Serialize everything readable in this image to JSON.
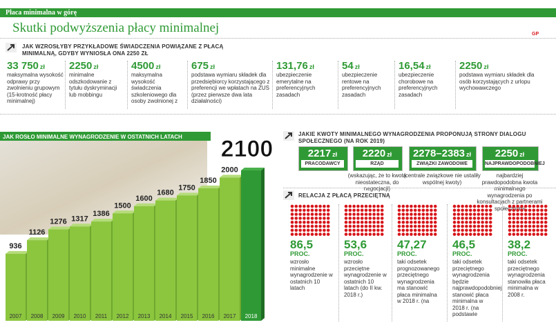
{
  "header": {
    "section": "Płaca minimalna w górę",
    "title": "Skutki podwyższenia płacy minimalnej",
    "logo": "GP"
  },
  "benefits": {
    "heading": "Jak wzrosłyby przykładowe świadczenia powiązane z płacą minimalną, gdyby wyniosła ona 2250 zł",
    "items": [
      {
        "amount": "33 750",
        "unit": "zł",
        "desc": "maksymalna wysokość odprawy przy zwolnieniu grupowym (15-krotność płacy minimalnej)"
      },
      {
        "amount": "2250",
        "unit": "zł",
        "desc": "minimalne odszkodowanie z tytułu dyskryminacji lub mobbingu"
      },
      {
        "amount": "4500",
        "unit": "zł",
        "desc": "maksymalna wysokość świadczenia szkoleniowego dla osoby zwolnionej z"
      },
      {
        "amount": "675",
        "unit": "zł",
        "desc": "podstawa wymiaru składek dla przedsiębiorcy korzystającego z preferencji we wpłatach na ZUS (przez pierwsze dwa lata działalności)"
      },
      {
        "amount": "131,76",
        "unit": "zł",
        "desc": "ubezpieczenie emerytalne na preferencyjnych zasadach"
      },
      {
        "amount": "54",
        "unit": "zł",
        "desc": "ubezpieczenie rentowe na preferencyjnych zasadach"
      },
      {
        "amount": "16,54",
        "unit": "zł",
        "desc": "ubezpieczenie chorobowe na preferencyjnych zasadach"
      },
      {
        "amount": "2250",
        "unit": "zł",
        "desc": "podstawa wymiaru składek dla osób korzystających z urlopu wychowawczego"
      }
    ]
  },
  "chart_data": {
    "type": "bar",
    "title": "Jak rosło minimalne wynagrodzenie w ostatnich latach",
    "categories": [
      "2007",
      "2008",
      "2009",
      "2010",
      "2011",
      "2012",
      "2013",
      "2014",
      "2015",
      "2016",
      "2017",
      "2018"
    ],
    "values": [
      936,
      1126,
      1276,
      1317,
      1386,
      1500,
      1600,
      1680,
      1750,
      1850,
      2000,
      2100
    ],
    "color": "#8cc63f",
    "highlight_color": "#2f9a35"
  },
  "proposals": {
    "heading": "Jakie kwoty minimalnego wynagrodzenia proponują strony dialogu społecznego (na rok 2019)",
    "items": [
      {
        "amount": "2217",
        "unit": "zł",
        "party": "Pracodawcy"
      },
      {
        "amount": "2220",
        "unit": "zł",
        "party": "Rząd",
        "note": "(wskazując, że to kwota nieostateczna, do negocjacji)"
      },
      {
        "amount": "2278–2383",
        "unit": "zł",
        "party": "Związki zawodowe",
        "note": "(centrale związkowe nie ustaliły wspólnej kwoty)"
      },
      {
        "amount": "2250",
        "unit": "zł",
        "party": "Najprawdopodobniej",
        "note": "najbardziej prawdopodobna kwota minimalnego wynagrodzenia po konsultacjach z partnerami społecznymi"
      }
    ]
  },
  "relation": {
    "heading": "Relacja z płacą przeciętną",
    "items": [
      {
        "value": "86,5",
        "unit": "PROC.",
        "desc": "wzrosło minimalne wynagrodzenie w ostatnich 10 latach"
      },
      {
        "value": "53,6",
        "unit": "PROC.",
        "desc": "wzrosło przeciętne wynagrodzenie w ostatnich 10 latach (do II kw. 2018 r.)"
      },
      {
        "value": "47,27",
        "unit": "PROC.",
        "desc": "taki odsetek prognozowanego przeciętnego wynagrodzenia ma stanowić płaca minimalna w 2018 r. (na"
      },
      {
        "value": "46,5",
        "unit": "PROC.",
        "desc": "taki odsetek przeciętnego wynagrodzenia będzie najprawdopodobniej stanowić płaca minimalna w 2018 r. (na podstawie"
      },
      {
        "value": "38,2",
        "unit": "PROC.",
        "desc": "taki odsetek przeciętnego wynagrodzenia stanowiła płaca minimalna w 2008 r."
      }
    ]
  }
}
